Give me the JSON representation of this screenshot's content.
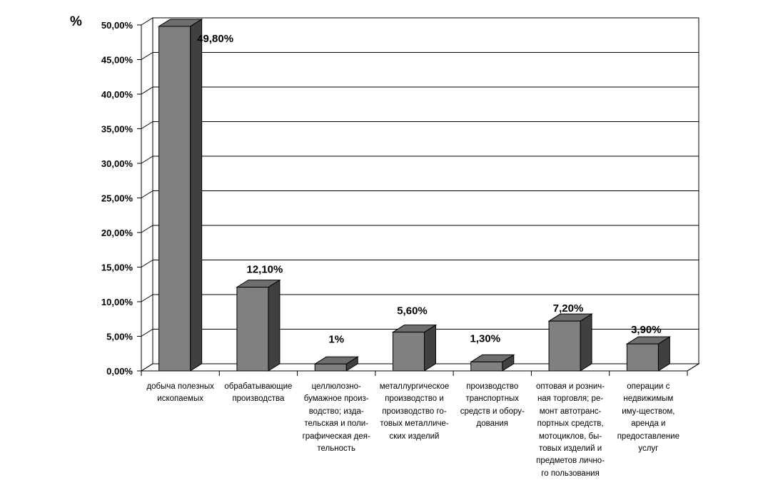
{
  "chart_data": {
    "type": "bar",
    "title": "",
    "ylabel": "%",
    "xlabel": "",
    "ylim": [
      0,
      50
    ],
    "y_ticks": [
      "0,00%",
      "5,00%",
      "10,00%",
      "15,00%",
      "20,00%",
      "25,00%",
      "30,00%",
      "35,00%",
      "40,00%",
      "45,00%",
      "50,00%"
    ],
    "grid": true,
    "legend": "none",
    "bar_color": "#808080",
    "categories": [
      "добыча полезных\nископаемых",
      "обрабатывающие\nпроизводства",
      "целлюлозно-\nбумажное произ-\nводство; изда-\nтельская и поли-\nграфическая дея-\nтельность",
      "металлургическое\nпроизводство и\nпроизводство го-\nтовых металличе-\nских изделий",
      "производство\nтранспортных\nсредств и обору-\nдования",
      "оптовая и рознич-\nная торговля; ре-\nмонт автотранс-\nпортных средств,\nмотоциклов, бы-\nтовых изделий и\nпредметов лично-\nго пользования",
      "операции с\nнедвижимым\nиму-ществом,\nаренда и\nпредоставление\nуслуг"
    ],
    "values": [
      49.8,
      12.1,
      1,
      5.6,
      1.3,
      7.2,
      3.9
    ],
    "data_labels": [
      "49,80%",
      "12,10%",
      "1%",
      "5,60%",
      "1,30%",
      "7,20%",
      "3,90%"
    ]
  }
}
